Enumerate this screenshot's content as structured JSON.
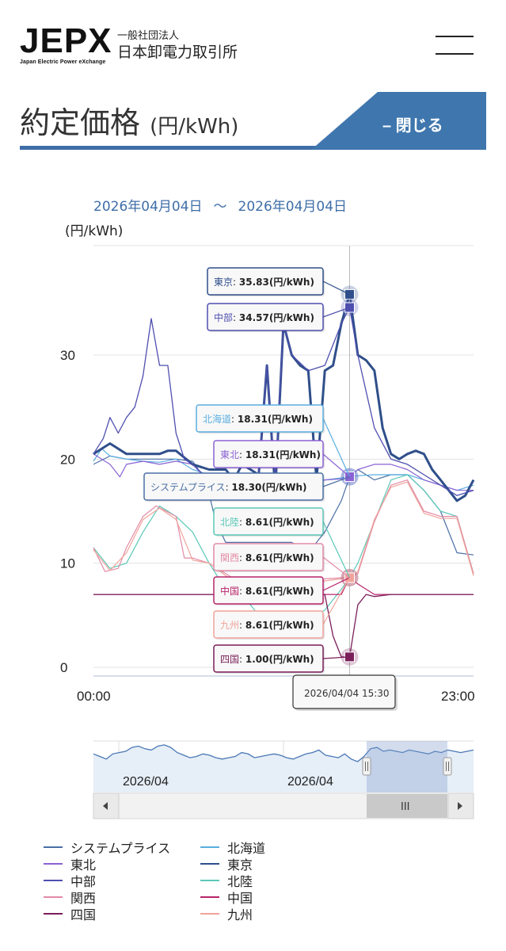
{
  "header": {
    "logo_text": "JEPX",
    "logo_subtitle": "Japan Electric Power eXchange",
    "org_type": "一般社団法人",
    "org_name": "日本卸電力取引所"
  },
  "page": {
    "title": "約定価格",
    "title_unit": "(円/kWh)",
    "close_label": "– 閉じる",
    "colors": {
      "accent": "#3f6ea8",
      "close_bg": "#3f76ae"
    }
  },
  "chart_data": {
    "type": "line",
    "date_from": "2026年04月04日",
    "date_sep": "〜",
    "date_to": "2026年04月04日",
    "ylabel": "(円/kWh)",
    "ylim": [
      0,
      40
    ],
    "yticks": [
      0,
      10,
      20,
      30
    ],
    "x_start_label": "00:00",
    "x_end_label": "23:00",
    "crosshair_time": 15.5,
    "crosshair_label": "2026/04/04 15:30",
    "series": [
      {
        "name": "システムプライス",
        "color": "#4a6fa5",
        "width": 1.2,
        "points": [
          [
            0,
            19.5
          ],
          [
            1,
            20.3
          ],
          [
            2,
            20.0
          ],
          [
            3,
            20.0
          ],
          [
            4,
            20.0
          ],
          [
            5,
            20.0
          ],
          [
            6,
            19.8
          ],
          [
            6.8,
            18.0
          ],
          [
            7.4,
            14.0
          ],
          [
            8,
            12.0
          ],
          [
            9,
            12.0
          ],
          [
            10,
            12.0
          ],
          [
            11,
            12.0
          ],
          [
            12,
            12.0
          ],
          [
            13,
            11.0
          ],
          [
            14,
            13.0
          ],
          [
            15,
            16.0
          ],
          [
            15.5,
            18.3
          ],
          [
            16,
            19.0
          ],
          [
            17,
            18.0
          ],
          [
            18,
            18.5
          ],
          [
            19,
            18.5
          ],
          [
            20,
            17.0
          ],
          [
            21,
            15.0
          ],
          [
            22,
            11.0
          ],
          [
            23,
            10.8
          ]
        ]
      },
      {
        "name": "北海道",
        "color": "#5aaee0",
        "width": 1.2,
        "points": [
          [
            0,
            19.8
          ],
          [
            0.5,
            21.0
          ],
          [
            1,
            20.3
          ],
          [
            2,
            20.0
          ],
          [
            3,
            19.8
          ],
          [
            4,
            19.7
          ],
          [
            5,
            20.0
          ],
          [
            6,
            19.0
          ],
          [
            7,
            18.5
          ],
          [
            8,
            18.0
          ],
          [
            9,
            17.8
          ],
          [
            10,
            18.5
          ],
          [
            11,
            17.5
          ],
          [
            12,
            18.0
          ],
          [
            13,
            18.0
          ],
          [
            14,
            18.0
          ],
          [
            15,
            18.2
          ],
          [
            15.5,
            18.31
          ],
          [
            16,
            18.4
          ],
          [
            17,
            18.5
          ],
          [
            18,
            18.5
          ],
          [
            19,
            18.5
          ],
          [
            20,
            18.0
          ],
          [
            21,
            17.5
          ],
          [
            22,
            17.0
          ],
          [
            23,
            17.5
          ]
        ]
      },
      {
        "name": "東北",
        "color": "#8a62d4",
        "width": 1.2,
        "points": [
          [
            0,
            20.5
          ],
          [
            1,
            19.5
          ],
          [
            1.6,
            18.3
          ],
          [
            2,
            19.5
          ],
          [
            3,
            19.8
          ],
          [
            4,
            19.5
          ],
          [
            5,
            19.8
          ],
          [
            6,
            19.5
          ],
          [
            7,
            17.8
          ],
          [
            8,
            16.5
          ],
          [
            9,
            16.5
          ],
          [
            10,
            17.0
          ],
          [
            11,
            16.8
          ],
          [
            12,
            17.2
          ],
          [
            13,
            17.5
          ],
          [
            14,
            18.0
          ],
          [
            15,
            18.1
          ],
          [
            15.5,
            18.31
          ],
          [
            16,
            19.0
          ],
          [
            17,
            19.5
          ],
          [
            18,
            19.5
          ],
          [
            19,
            19.0
          ],
          [
            20,
            18.0
          ],
          [
            21,
            17.5
          ],
          [
            22,
            17.0
          ],
          [
            23,
            17.0
          ]
        ]
      },
      {
        "name": "東京",
        "color": "#2f4f8a",
        "width": 3,
        "points": [
          [
            0,
            20.5
          ],
          [
            1,
            21.5
          ],
          [
            2,
            20.5
          ],
          [
            3,
            20.5
          ],
          [
            4,
            20.5
          ],
          [
            4.5,
            20.8
          ],
          [
            5,
            20.8
          ],
          [
            6,
            19.5
          ],
          [
            7,
            19.0
          ],
          [
            8,
            19.0
          ],
          [
            8.5,
            18.0
          ],
          [
            9,
            19.5
          ],
          [
            10,
            18.5
          ],
          [
            10.5,
            29.0
          ],
          [
            11,
            17.0
          ],
          [
            11.5,
            33.0
          ],
          [
            12,
            30.0
          ],
          [
            12.5,
            29.0
          ],
          [
            13,
            28.5
          ],
          [
            13.5,
            18.0
          ],
          [
            14,
            28.5
          ],
          [
            14.5,
            29.0
          ],
          [
            15,
            33.0
          ],
          [
            15.5,
            35.83
          ],
          [
            16,
            30.0
          ],
          [
            16.5,
            29.5
          ],
          [
            17,
            28.5
          ],
          [
            17.5,
            23.0
          ],
          [
            18,
            20.5
          ],
          [
            18.5,
            20.0
          ],
          [
            19,
            20.5
          ],
          [
            19.5,
            20.8
          ],
          [
            20,
            20.5
          ],
          [
            20.5,
            19.0
          ],
          [
            21,
            18.0
          ],
          [
            21.5,
            17.0
          ],
          [
            22,
            16.0
          ],
          [
            22.5,
            16.5
          ],
          [
            23,
            18.0
          ]
        ]
      },
      {
        "name": "中部",
        "color": "#4f4fb0",
        "width": 1.3,
        "points": [
          [
            0,
            20.5
          ],
          [
            0.6,
            22.0
          ],
          [
            1,
            24.0
          ],
          [
            1.5,
            22.5
          ],
          [
            2,
            24.0
          ],
          [
            2.5,
            25.0
          ],
          [
            3,
            28.0
          ],
          [
            3.5,
            33.5
          ],
          [
            4,
            29.0
          ],
          [
            4.5,
            29.0
          ],
          [
            5,
            22.5
          ],
          [
            5.5,
            20.0
          ],
          [
            6,
            19.5
          ],
          [
            7,
            18.0
          ],
          [
            8,
            17.0
          ],
          [
            9,
            17.5
          ],
          [
            10,
            18.5
          ],
          [
            10.5,
            29.0
          ],
          [
            11,
            18.0
          ],
          [
            11.5,
            33.0
          ],
          [
            12,
            30.0
          ],
          [
            13,
            28.5
          ],
          [
            14,
            29.0
          ],
          [
            15,
            33.0
          ],
          [
            15.5,
            34.57
          ],
          [
            16,
            30.0
          ],
          [
            17,
            23.0
          ],
          [
            18,
            20.0
          ],
          [
            19,
            19.5
          ],
          [
            20,
            18.5
          ],
          [
            21,
            17.5
          ],
          [
            22,
            16.5
          ],
          [
            23,
            17.0
          ]
        ]
      },
      {
        "name": "北陸",
        "color": "#5cc8b8",
        "width": 1.2,
        "points": [
          [
            0,
            11.5
          ],
          [
            1,
            9.5
          ],
          [
            2,
            10.0
          ],
          [
            3,
            13.0
          ],
          [
            4,
            15.5
          ],
          [
            5,
            14.5
          ],
          [
            6,
            13.0
          ],
          [
            7,
            10.0
          ],
          [
            8,
            7.5
          ],
          [
            9,
            7.0
          ],
          [
            10,
            5.0
          ],
          [
            11,
            4.0
          ],
          [
            12,
            4.0
          ],
          [
            13,
            4.5
          ],
          [
            14,
            5.5
          ],
          [
            15,
            7.5
          ],
          [
            15.5,
            8.61
          ],
          [
            16,
            10.0
          ],
          [
            17,
            14.0
          ],
          [
            18,
            18.0
          ],
          [
            19,
            18.5
          ],
          [
            20,
            17.0
          ],
          [
            21,
            15.0
          ],
          [
            22,
            14.5
          ],
          [
            23,
            9.0
          ]
        ]
      },
      {
        "name": "関西",
        "color": "#e28aa5",
        "width": 1.2,
        "points": [
          [
            0,
            11.5
          ],
          [
            0.7,
            9.2
          ],
          [
            1.5,
            9.5
          ],
          [
            2,
            11.5
          ],
          [
            3,
            14.5
          ],
          [
            3.8,
            15.5
          ],
          [
            5,
            14.5
          ],
          [
            5.5,
            10.5
          ],
          [
            6,
            10.5
          ],
          [
            7,
            10.0
          ],
          [
            8,
            9.0
          ],
          [
            9,
            8.0
          ],
          [
            10,
            7.5
          ],
          [
            11,
            7.5
          ],
          [
            12,
            8.0
          ],
          [
            13,
            8.0
          ],
          [
            14,
            8.5
          ],
          [
            15,
            8.6
          ],
          [
            15.5,
            8.61
          ],
          [
            16,
            9.0
          ],
          [
            17,
            14.0
          ],
          [
            18,
            17.5
          ],
          [
            19,
            18.0
          ],
          [
            20,
            15.0
          ],
          [
            21,
            14.5
          ],
          [
            22,
            14.5
          ],
          [
            23,
            9.0
          ]
        ]
      },
      {
        "name": "中国",
        "color": "#b8246a",
        "width": 1.2,
        "points": [
          [
            0,
            7.0
          ],
          [
            5,
            7.0
          ],
          [
            10,
            7.0
          ],
          [
            15,
            7.0
          ],
          [
            15.5,
            8.61
          ],
          [
            16,
            8.0
          ],
          [
            17,
            7.0
          ],
          [
            20,
            7.0
          ],
          [
            23,
            7.0
          ]
        ]
      },
      {
        "name": "四国",
        "color": "#7a1e5a",
        "width": 1.3,
        "points": [
          [
            0,
            7.0
          ],
          [
            3,
            7.0
          ],
          [
            6,
            7.0
          ],
          [
            9,
            7.0
          ],
          [
            12,
            7.0
          ],
          [
            14,
            7.0
          ],
          [
            14.5,
            3.0
          ],
          [
            15,
            1.0
          ],
          [
            15.5,
            1.0
          ],
          [
            16,
            6.0
          ],
          [
            16.5,
            7.0
          ],
          [
            17,
            6.8
          ],
          [
            18,
            7.0
          ],
          [
            20,
            7.0
          ],
          [
            23,
            7.0
          ]
        ]
      },
      {
        "name": "九州",
        "color": "#f0a39a",
        "width": 1.2,
        "points": [
          [
            0,
            11.3
          ],
          [
            1,
            9.3
          ],
          [
            2,
            11.0
          ],
          [
            3,
            14.2
          ],
          [
            4,
            15.3
          ],
          [
            5,
            14.2
          ],
          [
            6,
            10.3
          ],
          [
            7,
            10.0
          ],
          [
            8,
            8.8
          ],
          [
            9,
            7.8
          ],
          [
            10,
            7.3
          ],
          [
            11,
            7.4
          ],
          [
            12,
            7.8
          ],
          [
            13,
            8.0
          ],
          [
            14,
            8.3
          ],
          [
            15,
            8.5
          ],
          [
            15.5,
            8.61
          ],
          [
            16,
            9.2
          ],
          [
            17,
            14.2
          ],
          [
            18,
            17.3
          ],
          [
            19,
            17.8
          ],
          [
            20,
            14.8
          ],
          [
            21,
            14.3
          ],
          [
            22,
            14.3
          ],
          [
            23,
            8.8
          ]
        ]
      }
    ],
    "tooltips": [
      {
        "name": "東京",
        "value": "35.83(円/kWh)"
      },
      {
        "name": "中部",
        "value": "34.57(円/kWh)"
      },
      {
        "name": "北海道",
        "value": "18.31(円/kWh)"
      },
      {
        "name": "東北",
        "value": "18.31(円/kWh)"
      },
      {
        "name": "システムプライス",
        "value": "18.30(円/kWh)"
      },
      {
        "name": "北陸",
        "value": "8.61(円/kWh)"
      },
      {
        "name": "関西",
        "value": "8.61(円/kWh)"
      },
      {
        "name": "中国",
        "value": "8.61(円/kWh)"
      },
      {
        "name": "九州",
        "value": "8.61(円/kWh)"
      },
      {
        "name": "四国",
        "value": "1.00(円/kWh)"
      }
    ],
    "navigator": {
      "date_labels": [
        "2026/04",
        "2026/04"
      ],
      "series": [
        30,
        28,
        26,
        30,
        31,
        32,
        35,
        36,
        34,
        33,
        36,
        37,
        35,
        31,
        29,
        27,
        28,
        30,
        29,
        27,
        26,
        27,
        28,
        31,
        30,
        27,
        28,
        29,
        30,
        29,
        27,
        26,
        28,
        30,
        31,
        33,
        29,
        28,
        27,
        30,
        26,
        24,
        28,
        34,
        35,
        32,
        33,
        32,
        31,
        33,
        32,
        31,
        30,
        32,
        31,
        33,
        32,
        31,
        32,
        33
      ]
    },
    "scroll_grip": "III"
  },
  "legend": [
    {
      "label": "システムプライス",
      "color": "#4a6fa5"
    },
    {
      "label": "北海道",
      "color": "#5aaee0"
    },
    {
      "label": "東北",
      "color": "#8a62d4"
    },
    {
      "label": "東京",
      "color": "#2f4f8a"
    },
    {
      "label": "中部",
      "color": "#4f4fb0"
    },
    {
      "label": "北陸",
      "color": "#5cc8b8"
    },
    {
      "label": "関西",
      "color": "#e28aa5"
    },
    {
      "label": "中国",
      "color": "#b8246a"
    },
    {
      "label": "四国",
      "color": "#7a1e5a"
    },
    {
      "label": "九州",
      "color": "#f0a39a"
    }
  ]
}
